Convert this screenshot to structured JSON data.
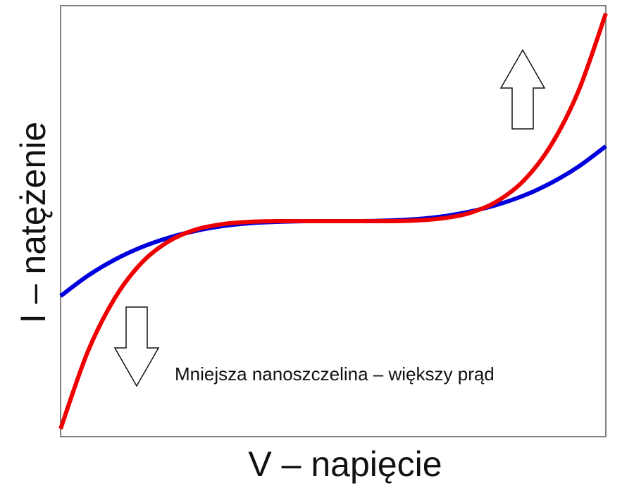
{
  "chart_data": {
    "type": "line",
    "xlabel": "V – napięcie",
    "ylabel": "I – natężenie",
    "xlim": [
      -1,
      1
    ],
    "ylim": [
      -1,
      1
    ],
    "grid": false,
    "ticks_shown": false,
    "series": [
      {
        "color": "#0000dd",
        "x": [
          -1,
          -0.9,
          -0.8,
          -0.7,
          -0.6,
          -0.5,
          -0.4,
          -0.3,
          -0.2,
          -0.1,
          0,
          0.1,
          0.2,
          0.3,
          0.4,
          0.5,
          0.6,
          0.7,
          0.8,
          0.9,
          1
        ],
        "y": [
          -0.35,
          -0.255,
          -0.179,
          -0.12,
          -0.076,
          -0.044,
          -0.022,
          -0.009,
          -0.003,
          0.0,
          0.0,
          0.0,
          0.003,
          0.009,
          0.022,
          0.044,
          0.076,
          0.12,
          0.179,
          0.255,
          0.35
        ]
      },
      {
        "color": "#ee0000",
        "x": [
          -1,
          -0.9,
          -0.8,
          -0.7,
          -0.6,
          -0.5,
          -0.4,
          -0.3,
          -0.2,
          -0.1,
          0,
          0.1,
          0.2,
          0.3,
          0.4,
          0.5,
          0.6,
          0.7,
          0.8,
          0.9,
          1
        ],
        "y": [
          -0.97,
          -0.609,
          -0.357,
          -0.191,
          -0.092,
          -0.038,
          -0.013,
          -0.003,
          0.0,
          0.0,
          0.0,
          0.0,
          0.0,
          0.003,
          0.013,
          0.038,
          0.092,
          0.191,
          0.357,
          0.609,
          0.97
        ]
      }
    ],
    "annotations": [
      {
        "text": "Mniejsza nanoszczelina – większy prąd"
      }
    ],
    "arrows": [
      {
        "direction": "up",
        "meaning": "current increase at positive voltage"
      },
      {
        "direction": "down",
        "meaning": "current increase at negative voltage"
      }
    ]
  }
}
